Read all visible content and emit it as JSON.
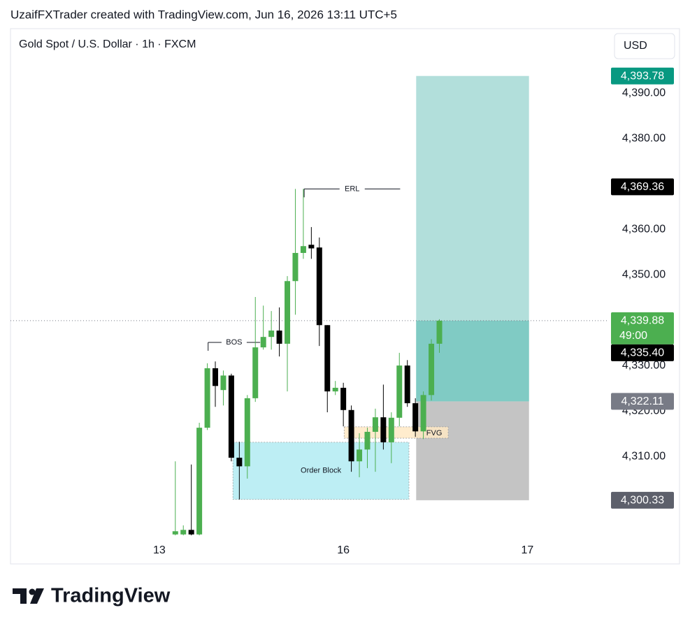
{
  "header": {
    "title": "UzaifFXTrader created with TradingView.com, Jun 16, 2026 13:11 UTC+5",
    "brand": "TradingView"
  },
  "chart_data": {
    "type": "candlestick",
    "title": "Gold Spot / U.S. Dollar · 1h · FXCM",
    "currency": "USD",
    "open": [
      4292.8,
      4292.8,
      4293.8,
      4292.8,
      4316.3,
      4329.4,
      4324.6,
      4327.8,
      4309.7,
      4307.8,
      4322.8,
      4334.0,
      4336.3,
      4337.7,
      4334.8,
      4348.6,
      4354.8,
      4356.6,
      4356.0,
      4338.9,
      4324.3,
      4325.1,
      4320.2,
      4308.9,
      4311.5,
      4315.4,
      4318.6,
      4313.1,
      4318.5,
      4330.0,
      4321.7,
      4315.5,
      4323.5,
      4334.8
    ],
    "high": [
      4308.9,
      4294.8,
      4308.2,
      4317.4,
      4330.5,
      4330.9,
      4328.9,
      4328.2,
      4313.2,
      4323.5,
      4345.1,
      4343.2,
      4342.0,
      4342.8,
      4349.7,
      4368.9,
      4368.9,
      4360.5,
      4358.2,
      4338.9,
      4326.6,
      4326.2,
      4321.2,
      4315.1,
      4316.3,
      4320.5,
      4325.8,
      4319.7,
      4332.8,
      4331.2,
      4322.8,
      4324.3,
      4335.8,
      4340.2
    ],
    "low": [
      4292.6,
      4292.6,
      4292.6,
      4292.6,
      4315.8,
      4320.9,
      4321.2,
      4308.9,
      4300.5,
      4305.1,
      4322.0,
      4333.5,
      4333.5,
      4332.0,
      4324.3,
      4341.2,
      4353.5,
      4353.5,
      4334.3,
      4319.7,
      4323.5,
      4316.6,
      4306.6,
      4305.4,
      4307.4,
      4306.6,
      4311.5,
      4308.5,
      4316.6,
      4320.9,
      4314.3,
      4313.8,
      4322.3,
      4332.8
    ],
    "close": [
      4293.5,
      4293.8,
      4292.8,
      4316.3,
      4329.4,
      4325.5,
      4327.8,
      4309.7,
      4307.8,
      4322.8,
      4334.0,
      4336.3,
      4337.7,
      4334.8,
      4348.6,
      4354.8,
      4356.3,
      4355.8,
      4338.9,
      4324.3,
      4325.1,
      4320.2,
      4308.9,
      4311.5,
      4315.4,
      4318.6,
      4313.1,
      4318.5,
      4330.0,
      4321.7,
      4315.5,
      4323.5,
      4334.8,
      4339.88
    ],
    "up_color": "#4caf50",
    "down_color": "#000000",
    "ylim": [
      4292,
      4404.2
    ],
    "yticks": [
      {
        "value": 4310,
        "label": "4,310.00"
      },
      {
        "value": 4320,
        "label": "4,320.00"
      },
      {
        "value": 4330,
        "label": "4,330.00"
      },
      {
        "value": 4350,
        "label": "4,350.00"
      },
      {
        "value": 4360,
        "label": "4,360.00"
      },
      {
        "value": 4380,
        "label": "4,380.00"
      },
      {
        "value": 4390,
        "label": "4,390.00"
      }
    ],
    "xlim": [
      -20.6,
      54.1
    ],
    "xticks": [
      {
        "value": -2,
        "label": "13"
      },
      {
        "value": 21,
        "label": "16"
      },
      {
        "value": 44,
        "label": "17"
      }
    ],
    "price_labels": [
      {
        "value": 4393.78,
        "label": "4,393.78",
        "color": "#089981"
      },
      {
        "value": 4369.36,
        "label": "4,369.36",
        "color": "#000000"
      },
      {
        "value": 4339.88,
        "label": "4,339.88",
        "sublabel": "49:00",
        "color": "#4caf50"
      },
      {
        "value": 4335.4,
        "label": "4,335.40",
        "color": "#000000"
      },
      {
        "value": 4322.11,
        "label": "4,322.11",
        "color": "#787b86"
      },
      {
        "value": 4300.33,
        "label": "4,300.33",
        "color": "#5d606b"
      }
    ],
    "position": {
      "target": 4393.78,
      "entry": 4322.11,
      "stop": 4300.33,
      "x_range": [
        30.1,
        44.2
      ]
    },
    "annotations": [
      {
        "text": "ERL",
        "value": 4368.9,
        "x_range": [
          16.1,
          28.1
        ]
      },
      {
        "text": "BOS",
        "value": 4335.1,
        "x_range": [
          4.1,
          10.6
        ]
      }
    ],
    "zones": [
      {
        "text": "Order Block",
        "top": 4313.1,
        "bottom": 4300.5,
        "x_range": [
          7.2,
          29.2
        ],
        "color": "#b2ebf2"
      },
      {
        "text": "FVG",
        "top": 4316.5,
        "bottom": 4314.0,
        "x_range": [
          21.1,
          34.1
        ],
        "color": "#ffe9c4"
      }
    ]
  }
}
